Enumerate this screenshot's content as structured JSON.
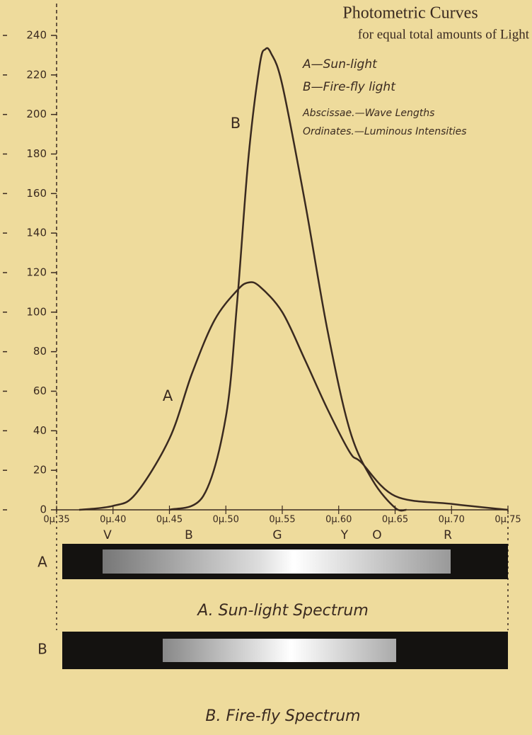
{
  "chart_data": {
    "type": "line",
    "title": "Photometric Curves",
    "subtitle": "for equal total amounts of Light",
    "notes": [
      "Abscissae.—Wave Lengths",
      "Ordinates.—Luminous Intensities"
    ],
    "series": [
      {
        "name": "A—Sun-light",
        "label": "A",
        "color": "#3a2a20",
        "x": [
          0.37,
          0.4,
          0.42,
          0.45,
          0.47,
          0.49,
          0.51,
          0.52,
          0.53,
          0.55,
          0.57,
          0.59,
          0.61,
          0.62,
          0.65,
          0.7,
          0.75
        ],
        "values": [
          0,
          2,
          8,
          36,
          69,
          96,
          111,
          115,
          113,
          100,
          76,
          51,
          29,
          24,
          7,
          3,
          0
        ]
      },
      {
        "name": "B—Fire-fly light",
        "label": "B",
        "color": "#3a2a20",
        "x": [
          0.45,
          0.48,
          0.5,
          0.51,
          0.52,
          0.53,
          0.535,
          0.54,
          0.55,
          0.57,
          0.59,
          0.61,
          0.63,
          0.65,
          0.66
        ],
        "values": [
          0,
          7,
          47,
          105,
          178,
          225,
          233,
          231,
          215,
          156,
          91,
          40,
          15,
          1,
          0
        ]
      }
    ],
    "xlim": [
      0.35,
      0.75
    ],
    "xticks": [
      {
        "value": 0.35,
        "label": "0μ.35"
      },
      {
        "value": 0.4,
        "label": "0μ.40"
      },
      {
        "value": 0.45,
        "label": "0μ.45"
      },
      {
        "value": 0.5,
        "label": "0μ.50"
      },
      {
        "value": 0.55,
        "label": "0μ.55"
      },
      {
        "value": 0.6,
        "label": "0μ.60"
      },
      {
        "value": 0.65,
        "label": "0μ.65"
      },
      {
        "value": 0.7,
        "label": "0μ.70"
      },
      {
        "value": 0.75,
        "label": "0μ.75"
      }
    ],
    "ylim": [
      0,
      240
    ],
    "yticks": [
      0,
      20,
      40,
      60,
      80,
      100,
      120,
      140,
      160,
      180,
      200,
      220,
      240
    ],
    "spectrum_letters": [
      "V",
      "B",
      "G",
      "Y",
      "O",
      "R"
    ],
    "spectra": [
      {
        "label": "A",
        "caption": "A. Sun-light Spectrum"
      },
      {
        "label": "B",
        "caption": "B. Fire-fly Spectrum"
      }
    ]
  }
}
